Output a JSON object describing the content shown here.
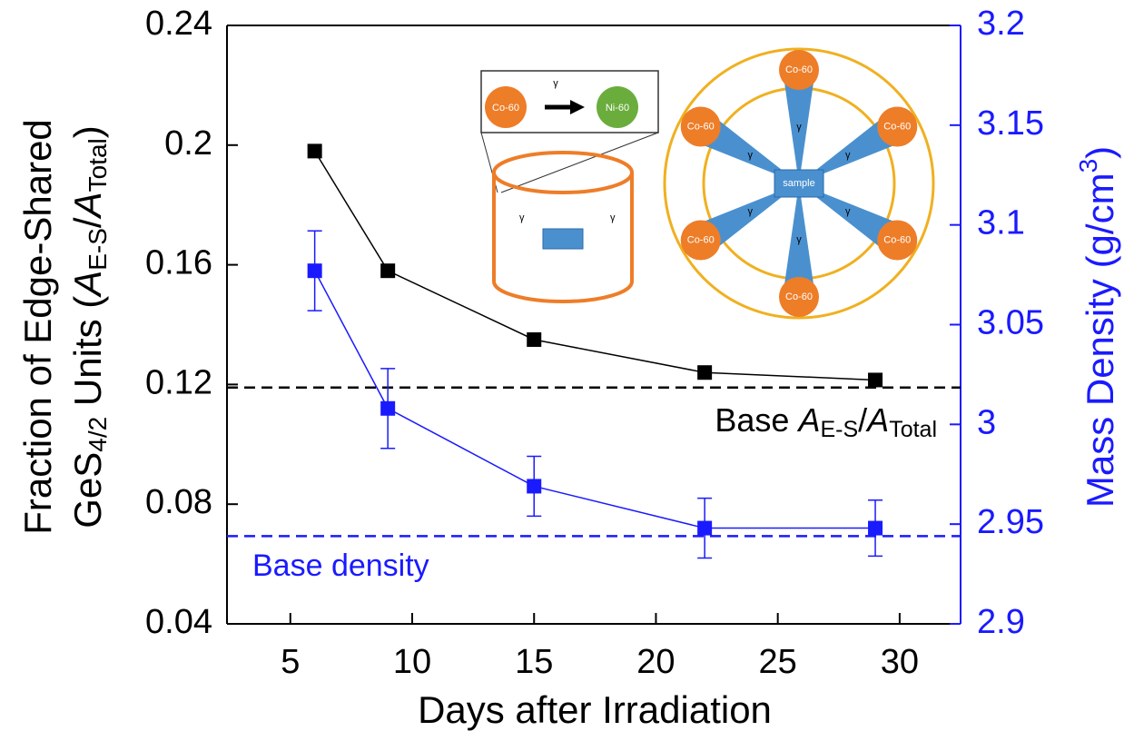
{
  "chart_data": {
    "type": "line",
    "x_label": "Days after Irradiation",
    "y_label": [
      [
        "Fraction of Edge-Shared"
      ],
      [
        "GeS",
        "4/2",
        " Units (",
        "A",
        "E-S",
        "/",
        "A",
        "Total",
        ")"
      ]
    ],
    "y2_label": [
      "Mass Density (g/cm",
      "3",
      ")"
    ],
    "x": [
      6,
      9,
      15,
      22,
      29
    ],
    "xlim": [
      2.4,
      32.5
    ],
    "xticks": [
      5,
      10,
      15,
      20,
      25,
      30
    ],
    "ylim": [
      0.04,
      0.24
    ],
    "yticks": [
      0.04,
      0.08,
      0.12,
      0.16,
      0.2,
      0.24
    ],
    "y2lim": [
      2.9,
      3.2
    ],
    "y2ticks": [
      2.9,
      2.95,
      3,
      3.05,
      3.1,
      3.15,
      3.2
    ],
    "series": [
      {
        "color": "#000000",
        "values": [
          0.198,
          0.158,
          0.135,
          0.124,
          0.1215
        ]
      },
      {
        "color": "#1a1aff",
        "axis": "y2",
        "values": [
          3.077,
          3.008,
          2.969,
          2.948,
          2.948
        ],
        "errors": [
          0.02,
          0.02,
          0.015,
          0.015,
          0.014
        ]
      }
    ],
    "reference_lines": [
      {
        "value": 0.119,
        "color": "#000000",
        "label": [
          "Base ",
          "A",
          "E-S",
          "/",
          "A",
          "Total"
        ]
      },
      {
        "value": 2.944,
        "axis": "y2",
        "color": "#1a1aff",
        "label": [
          "Base density"
        ]
      }
    ],
    "inset": {
      "gamma": "γ",
      "source": "Co-60",
      "product": "Ni-60",
      "sample": "sample"
    }
  }
}
